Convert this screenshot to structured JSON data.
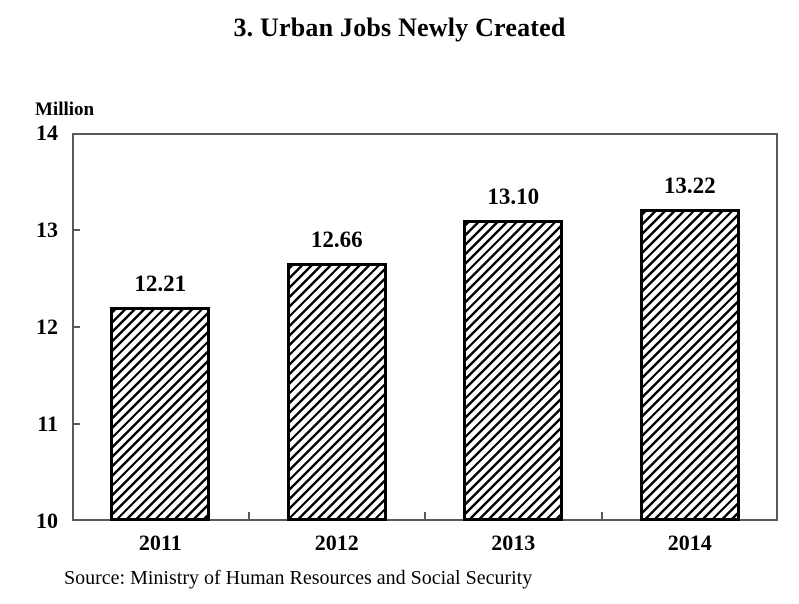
{
  "chart_data": {
    "type": "bar",
    "title": "3. Urban Jobs Newly Created",
    "unit_label": "Million",
    "categories": [
      "2011",
      "2012",
      "2013",
      "2014"
    ],
    "values": [
      12.21,
      12.66,
      13.1,
      13.22
    ],
    "value_labels": [
      "12.21",
      "12.66",
      "13.10",
      "13.22"
    ],
    "ylim": [
      10,
      14
    ],
    "yticks": [
      14,
      13,
      12,
      11,
      10
    ],
    "ytick_labels": [
      "14",
      "13",
      "12",
      "11",
      "10"
    ],
    "xlabel": "",
    "ylabel": "Million",
    "grid": false,
    "legend": "none",
    "bar_fill_style": "diagonal-hatch",
    "source_note": "Source: Ministry of Human Resources and Social Security",
    "colors": {
      "background": "#ffffff",
      "text": "#000000",
      "axis": "#595959",
      "bar_border": "#000000",
      "bar_hatch": "#000000",
      "bar_background": "#ffffff"
    }
  }
}
